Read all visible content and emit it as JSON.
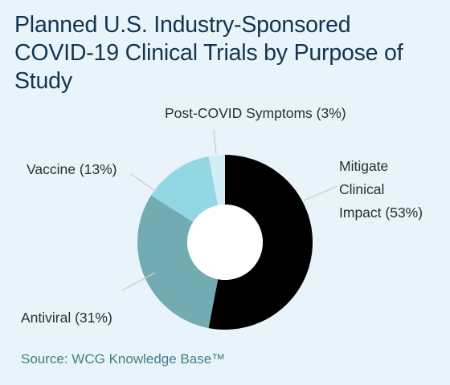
{
  "title": "Planned U.S. Industry-Sponsored COVID-19 Clinical Trials by Purpose of Study",
  "source": "Source: WCG Knowledge Base™",
  "chart_data": {
    "type": "pie",
    "title": "Planned U.S. Industry-Sponsored COVID-19 Clinical Trials by Purpose of Study",
    "donut": true,
    "slices": [
      {
        "name": "Mitigate Clinical Impact",
        "value": 53,
        "color": "#000000",
        "label_lines": [
          "Mitigate",
          "Clinical",
          "Impact (53%)"
        ]
      },
      {
        "name": "Antiviral",
        "value": 31,
        "color": "#72abb1",
        "label_lines": [
          "Antiviral (31%)"
        ]
      },
      {
        "name": "Vaccine",
        "value": 13,
        "color": "#93d7e2",
        "label_lines": [
          "Vaccine (13%)"
        ]
      },
      {
        "name": "Post-COVID Symptoms",
        "value": 3,
        "color": "#d3edf4",
        "label_lines": [
          "Post-COVID Symptoms (3%)"
        ]
      }
    ]
  }
}
